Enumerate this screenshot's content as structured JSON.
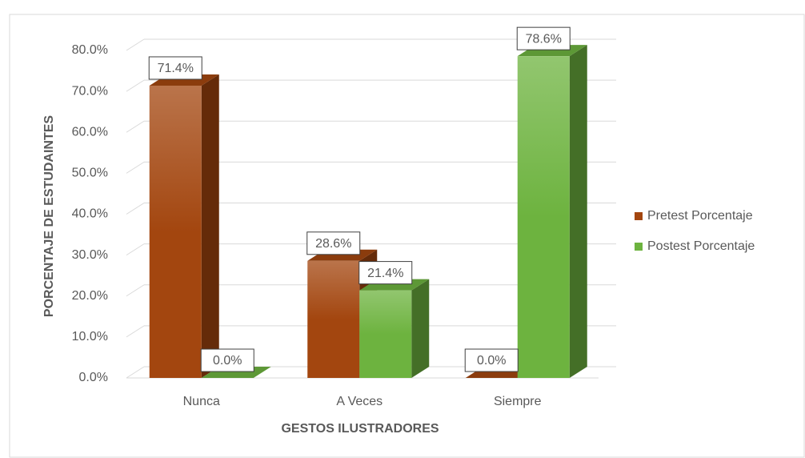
{
  "chart_data": {
    "type": "bar3d",
    "x_label": "GESTOS ILUSTRADORES",
    "y_label": "PORCENTAJE DE ESTUDAINTES",
    "categories": [
      "Nunca",
      "A Veces",
      "Siempre"
    ],
    "series": [
      {
        "name": "Pretest Porcentaje",
        "color": "#a3460f",
        "values": [
          71.4,
          28.6,
          0.0
        ],
        "value_labels": [
          "71.4%",
          "28.6%",
          "0.0%"
        ]
      },
      {
        "name": "Postest Porcentaje",
        "color": "#6db33f",
        "values": [
          0.0,
          21.4,
          78.6
        ],
        "value_labels": [
          "0.0%",
          "21.4%",
          "78.6%"
        ]
      }
    ],
    "ylim": [
      0,
      80
    ],
    "yticks": [
      {
        "value": 0,
        "label": "0.0%"
      },
      {
        "value": 10,
        "label": "10.0%"
      },
      {
        "value": 20,
        "label": "20.0%"
      },
      {
        "value": 30,
        "label": "30.0%"
      },
      {
        "value": 40,
        "label": "40.0%"
      },
      {
        "value": 50,
        "label": "50.0%"
      },
      {
        "value": 60,
        "label": "60.0%"
      },
      {
        "value": 70,
        "label": "70.0%"
      },
      {
        "value": 80,
        "label": "80.0%"
      }
    ],
    "grid": true,
    "legend": "right"
  }
}
